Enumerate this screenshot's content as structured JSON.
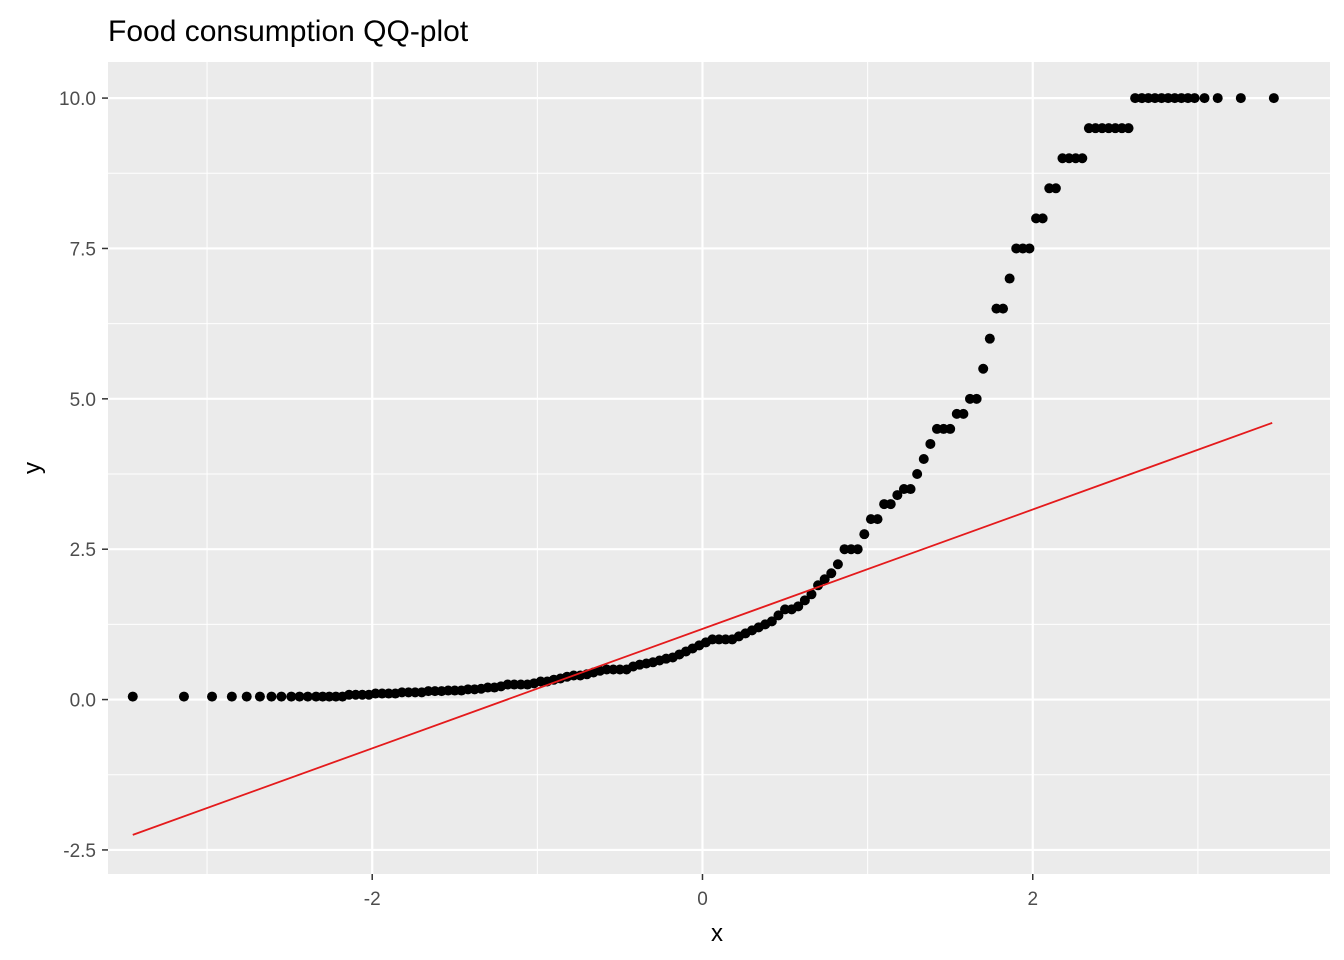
{
  "chart_data": {
    "type": "scatter",
    "title": "Food consumption QQ-plot",
    "xlabel": "x",
    "ylabel": "y",
    "xlim": [
      -3.6,
      3.8
    ],
    "ylim": [
      -2.9,
      10.6
    ],
    "x_ticks": [
      -2,
      0,
      2
    ],
    "x_tick_labels": [
      "-2",
      "0",
      "2"
    ],
    "y_ticks": [
      -2.5,
      0,
      2.5,
      5,
      7.5,
      10
    ],
    "y_tick_labels": [
      "-2.5",
      "0.0",
      "2.5",
      "5.0",
      "7.5",
      "10.0"
    ],
    "grid": true,
    "legend": "none",
    "point_color": "#000000",
    "line_color": "#e41a1c",
    "panel_background": "#ebebeb",
    "series": [
      {
        "values": [
          [
            -3.45,
            0.05
          ],
          [
            -3.14,
            0.05
          ],
          [
            -2.97,
            0.05
          ],
          [
            -2.85,
            0.05
          ],
          [
            -2.76,
            0.05
          ],
          [
            -2.68,
            0.05
          ],
          [
            -2.61,
            0.05
          ],
          [
            -2.55,
            0.05
          ],
          [
            -2.49,
            0.05
          ],
          [
            -2.44,
            0.05
          ],
          [
            -2.39,
            0.05
          ],
          [
            -2.34,
            0.05
          ],
          [
            -2.3,
            0.05
          ],
          [
            -2.26,
            0.05
          ],
          [
            -2.22,
            0.05
          ],
          [
            -2.18,
            0.05
          ],
          [
            -2.14,
            0.08
          ],
          [
            -2.1,
            0.08
          ],
          [
            -2.06,
            0.08
          ],
          [
            -2.02,
            0.08
          ],
          [
            -1.98,
            0.1
          ],
          [
            -1.94,
            0.1
          ],
          [
            -1.9,
            0.1
          ],
          [
            -1.86,
            0.1
          ],
          [
            -1.82,
            0.12
          ],
          [
            -1.78,
            0.12
          ],
          [
            -1.74,
            0.12
          ],
          [
            -1.7,
            0.12
          ],
          [
            -1.66,
            0.14
          ],
          [
            -1.62,
            0.14
          ],
          [
            -1.58,
            0.14
          ],
          [
            -1.54,
            0.15
          ],
          [
            -1.5,
            0.15
          ],
          [
            -1.46,
            0.15
          ],
          [
            -1.42,
            0.17
          ],
          [
            -1.38,
            0.17
          ],
          [
            -1.34,
            0.18
          ],
          [
            -1.3,
            0.2
          ],
          [
            -1.26,
            0.2
          ],
          [
            -1.22,
            0.22
          ],
          [
            -1.18,
            0.25
          ],
          [
            -1.14,
            0.25
          ],
          [
            -1.1,
            0.25
          ],
          [
            -1.06,
            0.25
          ],
          [
            -1.02,
            0.27
          ],
          [
            -0.98,
            0.3
          ],
          [
            -0.94,
            0.3
          ],
          [
            -0.9,
            0.33
          ],
          [
            -0.86,
            0.35
          ],
          [
            -0.82,
            0.38
          ],
          [
            -0.78,
            0.4
          ],
          [
            -0.74,
            0.4
          ],
          [
            -0.7,
            0.42
          ],
          [
            -0.66,
            0.45
          ],
          [
            -0.62,
            0.48
          ],
          [
            -0.58,
            0.5
          ],
          [
            -0.54,
            0.5
          ],
          [
            -0.5,
            0.5
          ],
          [
            -0.46,
            0.5
          ],
          [
            -0.42,
            0.55
          ],
          [
            -0.38,
            0.58
          ],
          [
            -0.34,
            0.6
          ],
          [
            -0.3,
            0.62
          ],
          [
            -0.26,
            0.65
          ],
          [
            -0.22,
            0.68
          ],
          [
            -0.18,
            0.7
          ],
          [
            -0.14,
            0.75
          ],
          [
            -0.1,
            0.8
          ],
          [
            -0.06,
            0.85
          ],
          [
            -0.02,
            0.9
          ],
          [
            0.02,
            0.95
          ],
          [
            0.06,
            1.0
          ],
          [
            0.1,
            1.0
          ],
          [
            0.14,
            1.0
          ],
          [
            0.18,
            1.0
          ],
          [
            0.22,
            1.05
          ],
          [
            0.26,
            1.1
          ],
          [
            0.3,
            1.15
          ],
          [
            0.34,
            1.2
          ],
          [
            0.38,
            1.25
          ],
          [
            0.42,
            1.3
          ],
          [
            0.46,
            1.4
          ],
          [
            0.5,
            1.5
          ],
          [
            0.54,
            1.5
          ],
          [
            0.58,
            1.55
          ],
          [
            0.62,
            1.65
          ],
          [
            0.66,
            1.75
          ],
          [
            0.7,
            1.9
          ],
          [
            0.74,
            2.0
          ],
          [
            0.78,
            2.1
          ],
          [
            0.82,
            2.25
          ],
          [
            0.86,
            2.5
          ],
          [
            0.9,
            2.5
          ],
          [
            0.94,
            2.5
          ],
          [
            0.98,
            2.75
          ],
          [
            1.02,
            3.0
          ],
          [
            1.06,
            3.0
          ],
          [
            1.1,
            3.25
          ],
          [
            1.14,
            3.25
          ],
          [
            1.18,
            3.4
          ],
          [
            1.22,
            3.5
          ],
          [
            1.26,
            3.5
          ],
          [
            1.3,
            3.75
          ],
          [
            1.34,
            4.0
          ],
          [
            1.38,
            4.25
          ],
          [
            1.42,
            4.5
          ],
          [
            1.46,
            4.5
          ],
          [
            1.5,
            4.5
          ],
          [
            1.54,
            4.75
          ],
          [
            1.58,
            4.75
          ],
          [
            1.62,
            5.0
          ],
          [
            1.66,
            5.0
          ],
          [
            1.7,
            5.5
          ],
          [
            1.74,
            6.0
          ],
          [
            1.78,
            6.5
          ],
          [
            1.82,
            6.5
          ],
          [
            1.86,
            7.0
          ],
          [
            1.9,
            7.5
          ],
          [
            1.94,
            7.5
          ],
          [
            1.98,
            7.5
          ],
          [
            2.02,
            8.0
          ],
          [
            2.06,
            8.0
          ],
          [
            2.1,
            8.5
          ],
          [
            2.14,
            8.5
          ],
          [
            2.18,
            9.0
          ],
          [
            2.22,
            9.0
          ],
          [
            2.26,
            9.0
          ],
          [
            2.3,
            9.0
          ],
          [
            2.34,
            9.5
          ],
          [
            2.38,
            9.5
          ],
          [
            2.42,
            9.5
          ],
          [
            2.46,
            9.5
          ],
          [
            2.5,
            9.5
          ],
          [
            2.54,
            9.5
          ],
          [
            2.58,
            9.5
          ],
          [
            2.62,
            10.0
          ],
          [
            2.66,
            10.0
          ],
          [
            2.7,
            10.0
          ],
          [
            2.74,
            10.0
          ],
          [
            2.78,
            10.0
          ],
          [
            2.82,
            10.0
          ],
          [
            2.86,
            10.0
          ],
          [
            2.9,
            10.0
          ],
          [
            2.94,
            10.0
          ],
          [
            2.98,
            10.0
          ],
          [
            3.04,
            10.0
          ],
          [
            3.12,
            10.0
          ],
          [
            3.26,
            10.0
          ],
          [
            3.46,
            10.0
          ]
        ]
      }
    ],
    "reference_line": [
      [
        -3.45,
        -2.25
      ],
      [
        3.45,
        4.6
      ]
    ]
  }
}
